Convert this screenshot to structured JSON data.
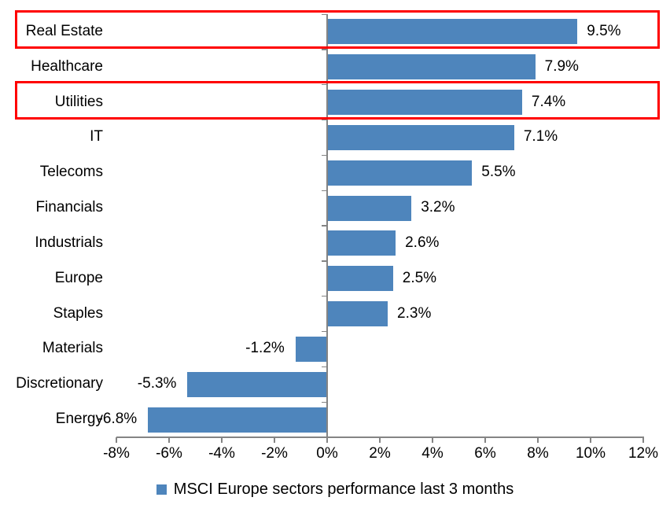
{
  "chart_data": {
    "type": "bar",
    "orientation": "horizontal",
    "title": "",
    "xlabel": "",
    "ylabel": "",
    "categories": [
      "Real Estate",
      "Healthcare",
      "Utilities",
      "IT",
      "Telecoms",
      "Financials",
      "Industrials",
      "Europe",
      "Staples",
      "Materials",
      "Discretionary",
      "Energy"
    ],
    "values": [
      9.5,
      7.9,
      7.4,
      7.1,
      5.5,
      3.2,
      2.6,
      2.5,
      2.3,
      -1.2,
      -5.3,
      -6.8
    ],
    "value_labels": [
      "9.5%",
      "7.9%",
      "7.4%",
      "7.1%",
      "5.5%",
      "3.2%",
      "2.6%",
      "2.5%",
      "2.3%",
      "-1.2%",
      "-5.3%",
      "-6.8%"
    ],
    "x_ticks": [
      "-8%",
      "-6%",
      "-4%",
      "-2%",
      "0%",
      "2%",
      "4%",
      "6%",
      "8%",
      "10%",
      "12%"
    ],
    "x_tick_values": [
      -8,
      -6,
      -4,
      -2,
      0,
      2,
      4,
      6,
      8,
      10,
      12
    ],
    "xlim": [
      -8,
      12
    ],
    "grid": false,
    "legend": "MSCI Europe sectors performance last 3 months",
    "legend_position": "bottom-center",
    "bar_color": "#4E85BC",
    "axis_color": "#848484",
    "highlight_color": "#FF0000",
    "highlighted_categories": [
      "Real Estate",
      "Utilities"
    ]
  }
}
